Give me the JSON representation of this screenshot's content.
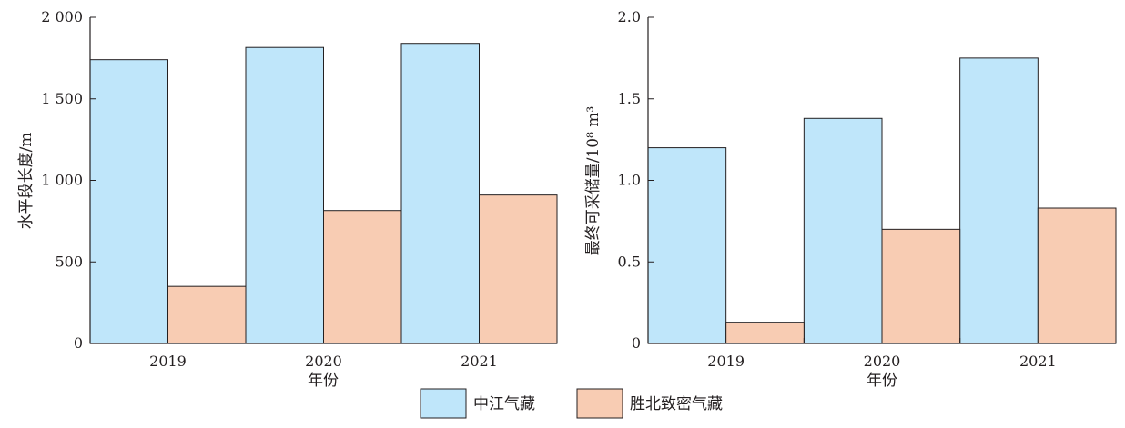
{
  "colors": {
    "series_1": "#bfe6fa",
    "series_2": "#f8ccb3",
    "stroke": "#231f20"
  },
  "legend": {
    "items": [
      {
        "label": "中江气藏"
      },
      {
        "label": "胜北致密气藏"
      }
    ]
  },
  "chart_data": [
    {
      "type": "bar",
      "categories": [
        "2019",
        "2020",
        "2021"
      ],
      "series": [
        {
          "name": "中江气藏",
          "values": [
            1740,
            1815,
            1840
          ]
        },
        {
          "name": "胜北致密气藏",
          "values": [
            350,
            815,
            910
          ]
        }
      ],
      "xlabel": "年份",
      "ylabel": "水平段长度/m",
      "ylim": [
        0,
        2000
      ],
      "yticks": [
        0,
        500,
        1000,
        1500,
        2000
      ],
      "ytick_labels": [
        "0",
        "500",
        "1 000",
        "1 500",
        "2 000"
      ],
      "grid": false
    },
    {
      "type": "bar",
      "categories": [
        "2019",
        "2020",
        "2021"
      ],
      "series": [
        {
          "name": "中江气藏",
          "values": [
            1.2,
            1.38,
            1.75
          ]
        },
        {
          "name": "胜北致密气藏",
          "values": [
            0.13,
            0.7,
            0.83
          ]
        }
      ],
      "xlabel": "年份",
      "ylabel": "最终可采储量/10⁸ m³",
      "ylim": [
        0,
        2.0
      ],
      "yticks": [
        0,
        0.5,
        1.0,
        1.5,
        2.0
      ],
      "ytick_labels": [
        "0",
        "0.5",
        "1.0",
        "1.5",
        "2.0"
      ],
      "grid": false
    }
  ]
}
